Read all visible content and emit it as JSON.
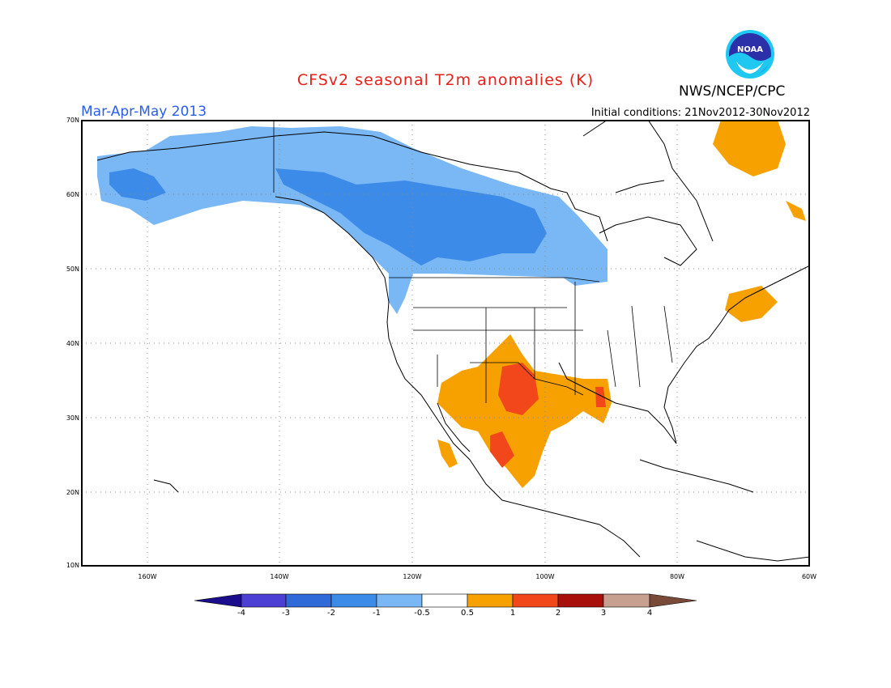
{
  "header": {
    "title": "CFSv2 seasonal T2m anomalies (K)",
    "agency": "NWS/NCEP/CPC",
    "logo_text": "NOAA",
    "period": "Mar-Apr-May 2013",
    "initial_conditions": "Initial conditions: 21Nov2012-30Nov2012"
  },
  "colors": {
    "title": "#e8201a",
    "period": "#2a5ee8",
    "cold_light": "#7ab8f5",
    "cold_mid": "#3d8be8",
    "warm": "#f7a100",
    "warm_strong": "#f2471a"
  },
  "map": {
    "region": "North America",
    "lon_range": [
      "170W",
      "60W"
    ],
    "lat_range": [
      "10N",
      "70N"
    ],
    "lat_labels": [
      "70N",
      "60N",
      "50N",
      "40N",
      "30N",
      "20N",
      "10N"
    ],
    "lon_labels": [
      "160W",
      "140W",
      "120W",
      "100W",
      "80W",
      "60W"
    ],
    "grid": "dotted"
  },
  "colorbar": {
    "labels": [
      "-4",
      "-3",
      "-2",
      "-1",
      "-0.5",
      "0.5",
      "1",
      "2",
      "3",
      "4"
    ],
    "colors": [
      "#1c0d8c",
      "#4b3fd4",
      "#2f6ad8",
      "#3d8be8",
      "#7ab8f5",
      "#ffffff",
      "#f7a100",
      "#f2471a",
      "#a8100c",
      "#c8a090",
      "#7a4a38"
    ]
  }
}
